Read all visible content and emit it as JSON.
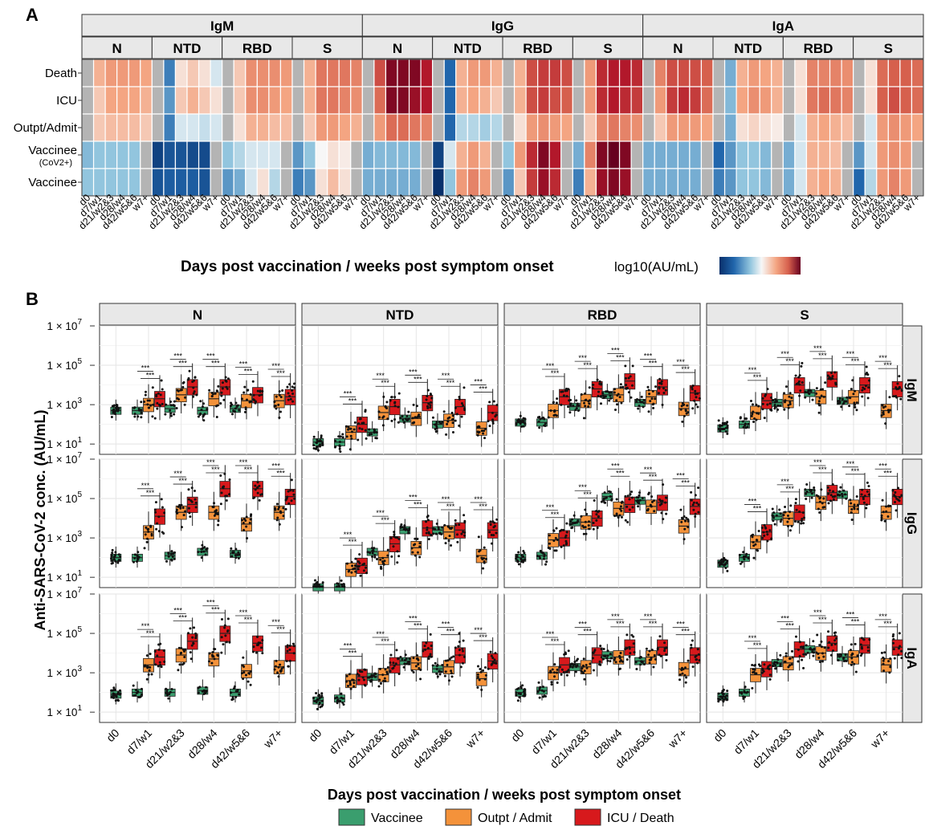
{
  "panel_labels": [
    "A",
    "B"
  ],
  "shared": {
    "timepoints": [
      "d0",
      "d7/w1",
      "d21/w2&3",
      "d28/w4",
      "d42/w5&6",
      "w7+"
    ],
    "xlabel": "Days post vaccination / weeks post symptom onset"
  },
  "legend": {
    "heatmap_title": "log10(AU/mL)",
    "heatmap_colors": [
      "#08306b",
      "#2166ac",
      "#92c5de",
      "#f7f7f7",
      "#f4a582",
      "#d6604d",
      "#b2182b",
      "#67001f"
    ],
    "groups": [
      {
        "label": "Vaccinee",
        "color": "#3a9e6e"
      },
      {
        "label": "Outpt / Admit",
        "color": "#f4923a"
      },
      {
        "label": "ICU / Death",
        "color": "#d7191c"
      }
    ]
  },
  "heatmap": {
    "isotypes": [
      "IgM",
      "IgG",
      "IgA"
    ],
    "antigens": [
      "N",
      "NTD",
      "RBD",
      "S"
    ],
    "rows": [
      {
        "label": "Death",
        "sublabel": ""
      },
      {
        "label": "ICU",
        "sublabel": ""
      },
      {
        "label": "Outpt/Admit",
        "sublabel": ""
      },
      {
        "label": "Vaccinee",
        "sublabel": "(CoV2+)"
      },
      {
        "label": "Vaccinee",
        "sublabel": ""
      }
    ],
    "missing_color": "#b4b4b4"
  },
  "boxplots": {
    "ylabel": "Anti-SARS-CoV-2 conc. (AU/mL)",
    "antigens": [
      "N",
      "NTD",
      "RBD",
      "S"
    ],
    "isotypes": [
      "IgM",
      "IgG",
      "IgA"
    ],
    "y_ticks": [
      {
        "base": "1 × 10",
        "exp": "1"
      },
      {
        "base": "1 × 10",
        "exp": "3"
      },
      {
        "base": "1 × 10",
        "exp": "5"
      },
      {
        "base": "1 × 10",
        "exp": "7"
      }
    ],
    "significance_marks": [
      "*",
      "**",
      "***"
    ]
  },
  "chart_data": [
    {
      "type": "heatmap",
      "columns": [
        "IgM",
        "IgG",
        "IgA"
      ],
      "subcolumns": [
        "N",
        "NTD",
        "RBD",
        "S"
      ],
      "x": [
        "d0",
        "d7/w1",
        "d21/w2&3",
        "d28/w4",
        "d42/w5&6",
        "w7+"
      ],
      "y": [
        "Death",
        "ICU",
        "Outpt/Admit",
        "Vaccinee (CoV2+)",
        "Vaccinee"
      ],
      "value_note": "relative log10(AU/mL); null = missing (grey)",
      "values": {
        "IgM": {
          "N": [
            [
              null,
              0.3,
              0.4,
              0.4,
              0.4,
              0.35
            ],
            [
              null,
              0.2,
              0.35,
              0.35,
              0.35,
              0.3
            ],
            [
              null,
              0.2,
              0.25,
              0.25,
              0.25,
              0.2
            ],
            [
              -0.35,
              -0.3,
              -0.3,
              -0.3,
              -0.3,
              null
            ],
            [
              -0.3,
              -0.3,
              -0.3,
              -0.3,
              -0.3,
              null
            ]
          ],
          "NTD": [
            [
              null,
              -0.6,
              0.1,
              0.2,
              0.1,
              -0.1
            ],
            [
              null,
              -0.5,
              0.2,
              0.3,
              0.2,
              0.1
            ],
            [
              null,
              -0.6,
              -0.1,
              -0.1,
              -0.15,
              -0.1
            ],
            [
              -0.9,
              -0.8,
              -0.8,
              -0.85,
              -0.85,
              null
            ],
            [
              -0.8,
              -0.75,
              -0.75,
              -0.75,
              -0.8,
              null
            ]
          ],
          "RBD": [
            [
              null,
              0.2,
              0.45,
              0.45,
              0.45,
              0.4
            ],
            [
              null,
              0.2,
              0.45,
              0.45,
              0.4,
              0.35
            ],
            [
              null,
              0.1,
              0.3,
              0.3,
              0.25,
              0.25
            ],
            [
              -0.3,
              -0.2,
              -0.1,
              -0.1,
              -0.1,
              null
            ],
            [
              -0.5,
              -0.4,
              -0.1,
              0.1,
              -0.2,
              null
            ]
          ],
          "S": [
            [
              null,
              0.3,
              0.55,
              0.55,
              0.55,
              0.5
            ],
            [
              null,
              0.3,
              0.55,
              0.55,
              0.5,
              0.45
            ],
            [
              null,
              0.2,
              0.4,
              0.4,
              0.35,
              0.3
            ],
            [
              -0.5,
              -0.3,
              0.0,
              0.1,
              0.05,
              null
            ],
            [
              -0.6,
              -0.5,
              0.1,
              0.25,
              0.1,
              null
            ]
          ]
        },
        "IgG": {
          "N": [
            [
              null,
              0.7,
              0.95,
              0.95,
              0.95,
              0.85
            ],
            [
              null,
              0.6,
              0.95,
              0.95,
              0.9,
              0.85
            ],
            [
              null,
              0.4,
              0.6,
              0.6,
              0.55,
              0.5
            ],
            [
              -0.4,
              -0.35,
              -0.35,
              -0.35,
              -0.35,
              null
            ],
            [
              -0.4,
              -0.4,
              -0.4,
              -0.4,
              -0.4,
              null
            ]
          ],
          "NTD": [
            [
              null,
              -0.7,
              0.3,
              0.4,
              0.4,
              0.3
            ],
            [
              null,
              -0.7,
              0.3,
              0.35,
              0.3,
              0.2
            ],
            [
              null,
              -0.7,
              -0.2,
              -0.2,
              -0.25,
              -0.2
            ],
            [
              -0.9,
              -0.1,
              0.3,
              0.4,
              0.3,
              null
            ],
            [
              -1.0,
              -0.3,
              0.4,
              0.5,
              0.4,
              null
            ]
          ],
          "RBD": [
            [
              null,
              0.3,
              0.7,
              0.75,
              0.75,
              0.7
            ],
            [
              null,
              0.3,
              0.7,
              0.75,
              0.7,
              0.65
            ],
            [
              null,
              0.1,
              0.4,
              0.45,
              0.4,
              0.35
            ],
            [
              -0.3,
              0.4,
              0.8,
              0.95,
              0.85,
              null
            ],
            [
              -0.5,
              0.2,
              0.75,
              0.9,
              0.8,
              null
            ]
          ],
          "S": [
            [
              null,
              0.4,
              0.8,
              0.85,
              0.85,
              0.8
            ],
            [
              null,
              0.4,
              0.8,
              0.85,
              0.8,
              0.75
            ],
            [
              null,
              0.2,
              0.5,
              0.55,
              0.5,
              0.45
            ],
            [
              -0.4,
              0.5,
              0.95,
              1.0,
              0.95,
              null
            ],
            [
              -0.6,
              0.3,
              0.9,
              0.95,
              0.9,
              null
            ]
          ]
        },
        "IgA": {
          "N": [
            [
              null,
              0.5,
              0.7,
              0.7,
              0.7,
              0.65
            ],
            [
              null,
              0.4,
              0.75,
              0.8,
              0.75,
              0.6
            ],
            [
              null,
              0.2,
              0.4,
              0.4,
              0.4,
              0.35
            ],
            [
              -0.4,
              -0.4,
              -0.4,
              -0.4,
              -0.4,
              null
            ],
            [
              -0.4,
              -0.4,
              -0.4,
              -0.4,
              -0.4,
              null
            ]
          ],
          "NTD": [
            [
              null,
              -0.4,
              0.3,
              0.4,
              0.35,
              0.3
            ],
            [
              null,
              -0.35,
              0.35,
              0.45,
              0.4,
              0.3
            ],
            [
              null,
              -0.4,
              0.1,
              0.15,
              0.1,
              0.05
            ],
            [
              -0.7,
              -0.5,
              -0.3,
              -0.3,
              -0.35,
              null
            ],
            [
              -0.6,
              -0.5,
              -0.3,
              -0.3,
              -0.35,
              null
            ]
          ],
          "RBD": [
            [
              null,
              0.1,
              0.5,
              0.5,
              0.5,
              0.45
            ],
            [
              null,
              0.1,
              0.55,
              0.6,
              0.55,
              0.5
            ],
            [
              null,
              -0.1,
              0.3,
              0.35,
              0.3,
              0.25
            ],
            [
              -0.4,
              -0.1,
              0.3,
              0.3,
              0.25,
              null
            ],
            [
              -0.4,
              -0.1,
              0.3,
              0.35,
              0.3,
              null
            ]
          ],
          "S": [
            [
              null,
              0.1,
              0.6,
              0.65,
              0.65,
              0.6
            ],
            [
              null,
              0.1,
              0.65,
              0.7,
              0.65,
              0.6
            ],
            [
              null,
              -0.1,
              0.4,
              0.45,
              0.4,
              0.35
            ],
            [
              -0.5,
              -0.1,
              0.4,
              0.45,
              0.4,
              null
            ],
            [
              -0.7,
              -0.2,
              0.4,
              0.5,
              0.4,
              null
            ]
          ]
        }
      }
    },
    {
      "type": "box",
      "y_scale": "log10",
      "ylim": [
        3,
        10000000
      ],
      "facets_cols": [
        "N",
        "NTD",
        "RBD",
        "S"
      ],
      "facets_rows": [
        "IgM",
        "IgG",
        "IgA"
      ],
      "x": [
        "d0",
        "d7/w1",
        "d21/w2&3",
        "d28/w4",
        "d42/w5&6",
        "w7+"
      ],
      "series_order": [
        "Vaccinee",
        "Outpt / Admit",
        "ICU / Death"
      ],
      "note": "medians in log10(AU/mL): [Vaccinee, Outpt/Admit, ICU/Death] per timepoint; d0 only Vaccinee",
      "medians": {
        "IgM": {
          "N": [
            [
              2.7,
              null,
              null
            ],
            [
              2.7,
              3.0,
              3.3
            ],
            [
              2.8,
              3.5,
              3.9
            ],
            [
              2.7,
              3.3,
              3.9
            ],
            [
              2.8,
              3.2,
              3.5
            ],
            [
              null,
              3.2,
              3.4
            ]
          ],
          "NTD": [
            [
              1.1,
              null,
              null
            ],
            [
              1.1,
              1.6,
              2.0
            ],
            [
              1.6,
              2.6,
              2.9
            ],
            [
              2.3,
              2.3,
              3.1
            ],
            [
              2.0,
              2.2,
              2.9
            ],
            [
              null,
              1.8,
              2.6
            ]
          ],
          "RBD": [
            [
              2.1,
              null,
              null
            ],
            [
              2.1,
              2.7,
              3.4
            ],
            [
              2.9,
              3.2,
              3.8
            ],
            [
              3.5,
              3.5,
              4.2
            ],
            [
              3.1,
              3.4,
              3.9
            ],
            [
              null,
              2.8,
              3.6
            ]
          ],
          "S": [
            [
              1.8,
              null,
              null
            ],
            [
              2.0,
              2.6,
              3.2
            ],
            [
              3.1,
              3.2,
              4.0
            ],
            [
              3.6,
              3.4,
              4.3
            ],
            [
              3.2,
              3.4,
              4.0
            ],
            [
              null,
              2.7,
              3.8
            ]
          ]
        },
        "IgG": {
          "N": [
            [
              2.0,
              null,
              null
            ],
            [
              2.0,
              3.3,
              4.1
            ],
            [
              2.1,
              4.3,
              4.7
            ],
            [
              2.3,
              4.3,
              5.5
            ],
            [
              2.2,
              3.7,
              5.5
            ],
            [
              null,
              4.3,
              5.1
            ]
          ],
          "NTD": [
            [
              0.5,
              null,
              null
            ],
            [
              0.5,
              1.4,
              1.6
            ],
            [
              2.3,
              2.0,
              2.7
            ],
            [
              3.4,
              2.5,
              3.5
            ],
            [
              3.4,
              3.3,
              3.4
            ],
            [
              null,
              2.1,
              3.4
            ]
          ],
          "RBD": [
            [
              2.0,
              null,
              null
            ],
            [
              2.1,
              2.9,
              3.0
            ],
            [
              3.8,
              3.8,
              4.0
            ],
            [
              5.1,
              4.5,
              4.7
            ],
            [
              4.9,
              4.6,
              4.8
            ],
            [
              null,
              3.6,
              4.6
            ]
          ],
          "S": [
            [
              1.7,
              null,
              null
            ],
            [
              2.0,
              2.8,
              3.3
            ],
            [
              4.1,
              4.0,
              4.3
            ],
            [
              5.3,
              4.8,
              5.3
            ],
            [
              5.2,
              4.6,
              5.1
            ],
            [
              null,
              4.3,
              5.1
            ]
          ]
        },
        "IgA": {
          "N": [
            [
              1.9,
              null,
              null
            ],
            [
              2.0,
              3.4,
              3.8
            ],
            [
              2.0,
              3.9,
              4.6
            ],
            [
              2.1,
              3.7,
              5.0
            ],
            [
              2.0,
              3.1,
              4.5
            ],
            [
              null,
              3.3,
              4.0
            ]
          ],
          "NTD": [
            [
              1.6,
              null,
              null
            ],
            [
              1.7,
              2.6,
              2.8
            ],
            [
              2.8,
              2.9,
              3.4
            ],
            [
              3.6,
              3.5,
              4.2
            ],
            [
              3.2,
              3.3,
              3.9
            ],
            [
              null,
              2.7,
              3.6
            ]
          ],
          "RBD": [
            [
              2.0,
              null,
              null
            ],
            [
              2.1,
              3.0,
              3.4
            ],
            [
              3.3,
              3.3,
              3.9
            ],
            [
              3.9,
              3.8,
              4.3
            ],
            [
              3.6,
              3.8,
              4.3
            ],
            [
              null,
              3.2,
              3.9
            ]
          ],
          "S": [
            [
              1.8,
              null,
              null
            ],
            [
              2.0,
              2.9,
              3.2
            ],
            [
              3.5,
              3.5,
              4.2
            ],
            [
              4.2,
              4.0,
              4.5
            ],
            [
              3.8,
              3.8,
              4.4
            ],
            [
              null,
              3.4,
              4.3
            ]
          ]
        }
      }
    }
  ]
}
